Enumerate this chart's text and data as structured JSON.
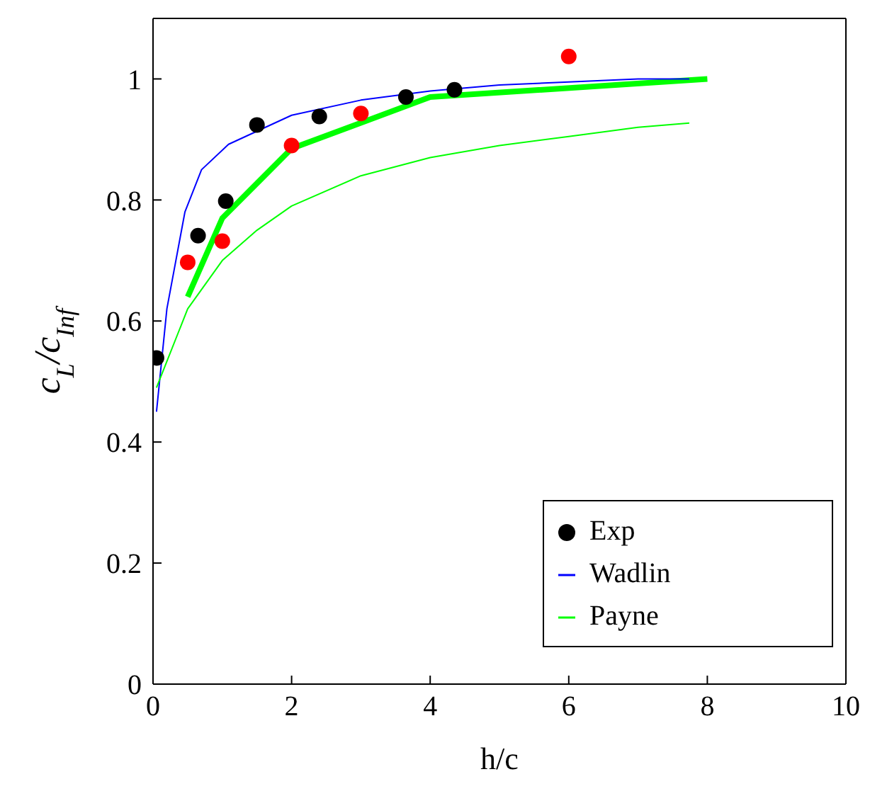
{
  "chart_data": {
    "type": "line",
    "xlabel": "h/c",
    "ylabel": "c$_{L}$/c$_{Inf}$",
    "xlim": [
      0,
      10
    ],
    "ylim": [
      0,
      1.1
    ],
    "xticks": [
      0,
      2,
      4,
      6,
      8,
      10
    ],
    "yticks": [
      0,
      0.2,
      0.4,
      0.6,
      0.8,
      1
    ],
    "grid": false,
    "legend": "bottom right",
    "series": [
      {
        "color": "#00ff00",
        "x": [
          0.5,
          1,
          2,
          4,
          8
        ],
        "values": [
          0.64,
          0.77,
          0.885,
          0.97,
          1.0
        ]
      },
      {
        "type": "scatter",
        "color": "#ff0000",
        "marker": "circle",
        "x": [
          0.5,
          1,
          2,
          3,
          6
        ],
        "values": [
          0.697,
          0.732,
          0.89,
          0.943,
          1.037
        ]
      },
      {
        "type": "scatter",
        "name": "Exp",
        "color": "#000000",
        "marker": "circle",
        "x": [
          0.05,
          0.65,
          1.05,
          1.5,
          2.4,
          3.65,
          4.35
        ],
        "values": [
          0.539,
          0.741,
          0.798,
          0.924,
          0.938,
          0.97,
          0.982
        ]
      },
      {
        "name": "Wadlin",
        "color": "#0000ff",
        "x": [
          0.05,
          0.2,
          0.46,
          0.7,
          1.09,
          2,
          3,
          4,
          5,
          6,
          7,
          7.74
        ],
        "values": [
          0.45,
          0.62,
          0.78,
          0.85,
          0.892,
          0.94,
          0.965,
          0.98,
          0.99,
          0.995,
          1.0,
          1.0
        ]
      },
      {
        "name": "Payne",
        "color": "#00ff00",
        "x": [
          0.05,
          0.5,
          1,
          1.5,
          2,
          3,
          4,
          5,
          6,
          7,
          7.74
        ],
        "values": [
          0.49,
          0.62,
          0.7,
          0.75,
          0.79,
          0.84,
          0.87,
          0.89,
          0.905,
          0.92,
          0.927
        ]
      }
    ]
  }
}
